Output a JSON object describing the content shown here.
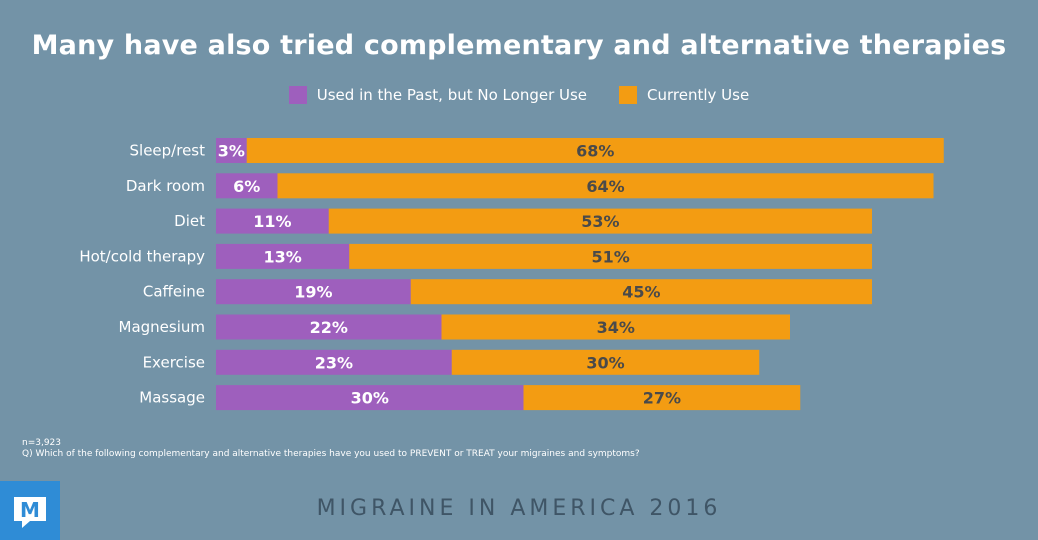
{
  "title": "Many have also tried complementary and alternative therapies",
  "legend": {
    "past": {
      "label": "Used in the Past, but No Longer Use",
      "color": "#9e5fbd"
    },
    "current": {
      "label": "Currently Use",
      "color": "#f39c12"
    }
  },
  "chart_data": {
    "type": "bar",
    "orientation": "horizontal",
    "stacked": true,
    "title": "Many have also tried complementary and alternative therapies",
    "categories": [
      "Sleep/rest",
      "Dark room",
      "Diet",
      "Hot/cold therapy",
      "Caffeine",
      "Magnesium",
      "Exercise",
      "Massage"
    ],
    "series": [
      {
        "name": "Used in the Past, but No Longer Use",
        "values": [
          3,
          6,
          11,
          13,
          19,
          22,
          23,
          30
        ],
        "labels": [
          "3%",
          "6%",
          "11%",
          "13%",
          "19%",
          "22%",
          "23%",
          "30%"
        ],
        "color": "#9e5fbd"
      },
      {
        "name": "Currently Use",
        "values": [
          68,
          64,
          53,
          51,
          45,
          34,
          30,
          27
        ],
        "labels": [
          "68%",
          "64%",
          "53%",
          "51%",
          "45%",
          "34%",
          "30%",
          "27%"
        ],
        "color": "#f39c12"
      }
    ],
    "legend_position": "top",
    "grid": false
  },
  "footnote": {
    "n": "n=3,923",
    "question": "Q) Which of the following complementary and alternative therapies have you used to PREVENT or TREAT your migraines and symptoms?"
  },
  "brand": {
    "logo_letter": "M",
    "footer": "MIGRAINE IN AMERICA 2016"
  }
}
